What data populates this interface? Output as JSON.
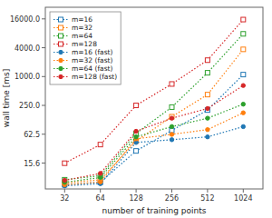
{
  "chart_data": {
    "type": "line",
    "x": [
      32,
      64,
      128,
      256,
      512,
      1024
    ],
    "series": [
      {
        "name": "m=16",
        "color": "#1f77b4",
        "marker": "open-square",
        "line_style": "dotted",
        "values": [
          5.5,
          6.2,
          28.0,
          75.0,
          200.0,
          1100.0
        ]
      },
      {
        "name": "m=32",
        "color": "#ff7f0e",
        "marker": "open-square",
        "line_style": "dotted",
        "values": [
          6.0,
          7.0,
          45.0,
          145.0,
          420.0,
          3700.0
        ]
      },
      {
        "name": "m=64",
        "color": "#2ca02c",
        "marker": "open-square",
        "line_style": "dotted",
        "values": [
          7.0,
          8.5,
          65.0,
          230.0,
          1200.0,
          7800.0
        ]
      },
      {
        "name": "m=128",
        "color": "#d62728",
        "marker": "open-square",
        "line_style": "dotted",
        "values": [
          15.5,
          38.0,
          250.0,
          700.0,
          2200.0,
          15500.0
        ]
      },
      {
        "name": "m=16 (fast)",
        "color": "#1f77b4",
        "marker": "circle",
        "line_style": "dotted",
        "values": [
          5.2,
          5.8,
          42.0,
          48.0,
          55.0,
          90.0
        ]
      },
      {
        "name": "m=32 (fast)",
        "color": "#ff7f0e",
        "marker": "circle",
        "line_style": "dotted",
        "values": [
          5.5,
          6.3,
          50.0,
          62.0,
          78.0,
          175.0
        ]
      },
      {
        "name": "m=64 (fast)",
        "color": "#2ca02c",
        "marker": "circle",
        "line_style": "dotted",
        "values": [
          6.2,
          7.8,
          55.0,
          90.0,
          135.0,
          265.0
        ]
      },
      {
        "name": "m=128 (fast)",
        "color": "#d62728",
        "marker": "circle",
        "line_style": "dotted",
        "values": [
          6.8,
          9.5,
          72.0,
          135.0,
          215.0,
          650.0
        ]
      }
    ],
    "xlabel": "number of training points",
    "ylabel": "wall time [ms]",
    "xlim": [
      22,
      1500
    ],
    "ylim": [
      4.5,
      28000
    ],
    "xticks": [
      32,
      64,
      128,
      256,
      512,
      1024
    ],
    "yticks": [
      15.6,
      62.5,
      {
        "value": 250.0,
        "label": "250.0"
      },
      {
        "value": 1000.0,
        "label": "1000.0"
      },
      {
        "value": 4000.0,
        "label": "4000.0"
      },
      {
        "value": 16000.0,
        "label": "16000.0"
      }
    ],
    "log": true,
    "grid": false,
    "legend": "upper left"
  }
}
